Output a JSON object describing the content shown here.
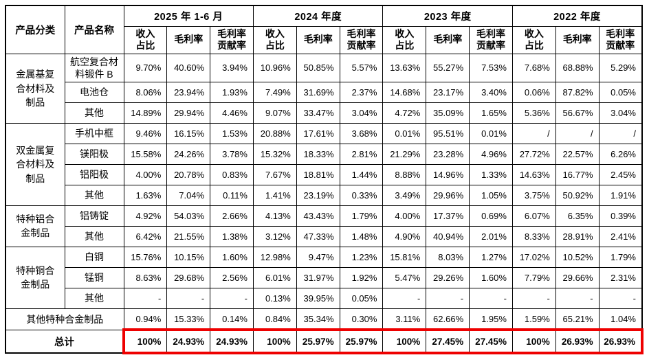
{
  "colors": {
    "highlight_border": "#ee0000",
    "grid_line": "#000000",
    "text": "#000000",
    "background": "#ffffff"
  },
  "table": {
    "corner_headers": [
      "产品分类",
      "产品名称"
    ],
    "period_headers": [
      "2025 年 1-6 月",
      "2024 年度",
      "2023 年度",
      "2022 年度"
    ],
    "metric_headers": [
      "收入\n占比",
      "毛利率",
      "毛利率\n贡献率"
    ],
    "groups": [
      {
        "category": "金属基复合材料及制品",
        "rows": [
          {
            "product": "航空复合材料锻件 B",
            "values": [
              "9.70%",
              "40.60%",
              "3.94%",
              "10.96%",
              "50.85%",
              "5.57%",
              "13.63%",
              "55.27%",
              "7.53%",
              "7.68%",
              "68.88%",
              "5.29%"
            ]
          },
          {
            "product": "电池仓",
            "values": [
              "8.06%",
              "23.94%",
              "1.93%",
              "7.49%",
              "31.69%",
              "2.37%",
              "14.68%",
              "23.17%",
              "3.40%",
              "0.06%",
              "87.82%",
              "0.05%"
            ]
          },
          {
            "product": "其他",
            "values": [
              "14.89%",
              "29.94%",
              "4.46%",
              "9.07%",
              "33.47%",
              "3.04%",
              "4.72%",
              "35.09%",
              "1.65%",
              "5.36%",
              "56.67%",
              "3.04%"
            ]
          }
        ]
      },
      {
        "category": "双金属复合材料及制品",
        "rows": [
          {
            "product": "手机中框",
            "values": [
              "9.46%",
              "16.15%",
              "1.53%",
              "20.88%",
              "17.61%",
              "3.68%",
              "0.01%",
              "95.51%",
              "0.01%",
              "/",
              "/",
              "/"
            ]
          },
          {
            "product": "镁阳极",
            "values": [
              "15.58%",
              "24.26%",
              "3.78%",
              "15.32%",
              "18.33%",
              "2.81%",
              "21.29%",
              "23.28%",
              "4.96%",
              "27.72%",
              "22.57%",
              "6.26%"
            ]
          },
          {
            "product": "铝阳极",
            "values": [
              "4.00%",
              "20.78%",
              "0.83%",
              "7.67%",
              "18.81%",
              "1.44%",
              "8.88%",
              "14.96%",
              "1.33%",
              "14.63%",
              "16.77%",
              "2.45%"
            ]
          },
          {
            "product": "其他",
            "values": [
              "1.63%",
              "7.04%",
              "0.11%",
              "1.41%",
              "23.19%",
              "0.33%",
              "3.49%",
              "29.96%",
              "1.05%",
              "3.75%",
              "50.92%",
              "1.91%"
            ]
          }
        ]
      },
      {
        "category": "特种铝合金制品",
        "rows": [
          {
            "product": "铝铸锭",
            "values": [
              "4.92%",
              "54.03%",
              "2.66%",
              "4.13%",
              "43.43%",
              "1.79%",
              "4.00%",
              "17.37%",
              "0.69%",
              "6.07%",
              "6.35%",
              "0.39%"
            ]
          },
          {
            "product": "其他",
            "values": [
              "6.42%",
              "21.55%",
              "1.38%",
              "3.12%",
              "47.33%",
              "1.48%",
              "4.90%",
              "40.94%",
              "2.01%",
              "8.33%",
              "28.91%",
              "2.41%"
            ]
          }
        ]
      },
      {
        "category": "特种铜合金制品",
        "rows": [
          {
            "product": "白铜",
            "values": [
              "15.76%",
              "10.15%",
              "1.60%",
              "12.98%",
              "9.47%",
              "1.23%",
              "15.81%",
              "8.03%",
              "1.27%",
              "17.02%",
              "10.52%",
              "1.79%"
            ]
          },
          {
            "product": "锰铜",
            "values": [
              "8.63%",
              "29.68%",
              "2.56%",
              "6.01%",
              "31.97%",
              "1.92%",
              "5.47%",
              "29.26%",
              "1.60%",
              "7.79%",
              "29.66%",
              "2.31%"
            ]
          },
          {
            "product": "其他",
            "values": [
              "-",
              "-",
              "-",
              "0.13%",
              "39.95%",
              "0.05%",
              "-",
              "-",
              "-",
              "-",
              "-",
              "-"
            ]
          }
        ]
      }
    ],
    "merged_rows": [
      {
        "label": "其他特种合金制品",
        "values": [
          "0.94%",
          "15.33%",
          "0.14%",
          "0.84%",
          "35.34%",
          "0.30%",
          "3.11%",
          "62.66%",
          "1.95%",
          "1.59%",
          "65.21%",
          "1.04%"
        ]
      }
    ],
    "total_row": {
      "label": "总计",
      "values": [
        "100%",
        "24.93%",
        "24.93%",
        "100%",
        "25.97%",
        "25.97%",
        "100%",
        "27.45%",
        "27.45%",
        "100%",
        "26.93%",
        "26.93%"
      ]
    }
  }
}
